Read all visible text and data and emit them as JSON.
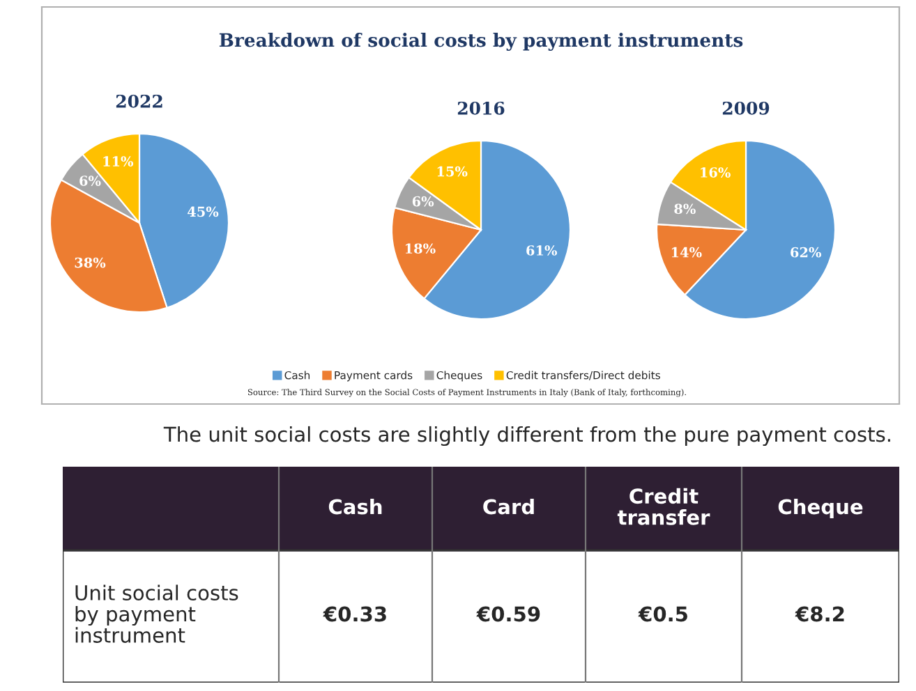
{
  "chart_data": [
    {
      "type": "pie",
      "title": "2022",
      "categories": [
        "Cash",
        "Payment cards",
        "Cheques",
        "Credit transfers/Direct debits"
      ],
      "values": [
        45,
        38,
        6,
        11
      ],
      "value_labels": [
        "45%",
        "38%",
        "6%",
        "11%"
      ],
      "colors": [
        "#5b9bd5",
        "#ed7d31",
        "#a5a5a5",
        "#ffc000"
      ],
      "legend": "bottom",
      "annotations": [
        "Breakdown of social costs by payment instruments",
        "Source: The Third Survey on the Social Costs of Payment Instruments in Italy (Bank of Italy, forthcoming)."
      ]
    },
    {
      "type": "pie",
      "title": "2016",
      "categories": [
        null,
        null,
        null,
        null
      ],
      "values": [
        61,
        18,
        6,
        15
      ],
      "value_labels": [
        "61%",
        "18%",
        "6%",
        "15%"
      ],
      "colors": [
        "#5b9bd5",
        "#ed7d31",
        "#a5a5a5",
        "#ffc000"
      ]
    },
    {
      "type": "pie",
      "title": "2009",
      "categories": [
        null,
        null,
        null,
        null
      ],
      "values": [
        62,
        14,
        8,
        16
      ],
      "value_labels": [
        "62%",
        "14%",
        "8%",
        "16%"
      ],
      "colors": [
        "#5b9bd5",
        "#ed7d31",
        "#a5a5a5",
        "#ffc000"
      ]
    },
    {
      "type": "other",
      "title": "Unit social costs by payment instrument",
      "categories": [
        "Cash",
        "Card",
        "Credit transfer",
        "Cheque"
      ],
      "values": [
        0.33,
        0.59,
        0.5,
        8.2
      ],
      "value_labels": [
        "€0.33",
        "€0.59",
        "€0.5",
        "€8.2"
      ],
      "color": "#2e1f33",
      "annotations": [
        "The unit social costs are slightly different from the pure payment costs."
      ]
    }
  ]
}
